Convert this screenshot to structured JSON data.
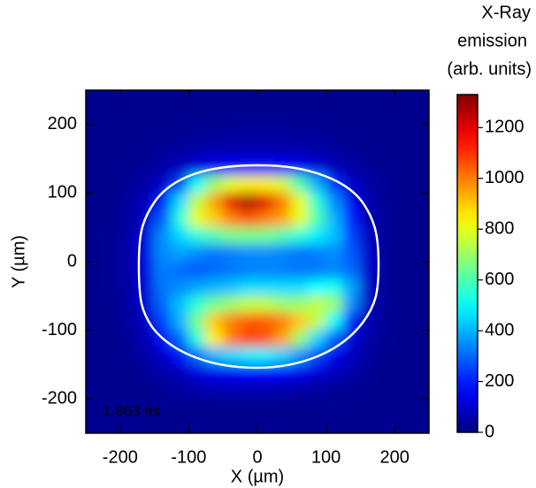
{
  "chart_data": {
    "type": "heatmap",
    "xlabel": "X (µm)",
    "ylabel": "Y (µm)",
    "annotation": "1.863 ns",
    "annotation_color": "#c030c0",
    "colormap": "jet",
    "xlim": [
      -250,
      250
    ],
    "ylim": [
      -250,
      250
    ],
    "xticks": [
      -200,
      -100,
      0,
      100,
      200
    ],
    "yticks": [
      -200,
      -100,
      0,
      100,
      200
    ],
    "x": [
      -237.5,
      -212.5,
      -187.5,
      -162.5,
      -137.5,
      -112.5,
      -87.5,
      -62.5,
      -37.5,
      -12.5,
      12.5,
      37.5,
      62.5,
      87.5,
      112.5,
      137.5,
      162.5,
      187.5,
      212.5,
      237.5
    ],
    "y": [
      237.5,
      212.5,
      187.5,
      162.5,
      137.5,
      112.5,
      87.5,
      62.5,
      37.5,
      12.5,
      -12.5,
      -37.5,
      -62.5,
      -87.5,
      -112.5,
      -137.5,
      -162.5,
      -187.5,
      -212.5,
      -237.5
    ],
    "values": [
      [
        20,
        20,
        20,
        20,
        20,
        20,
        20,
        20,
        20,
        20,
        20,
        20,
        20,
        20,
        20,
        20,
        20,
        20,
        20,
        20
      ],
      [
        20,
        20,
        20,
        20,
        20,
        20,
        20,
        20,
        20,
        20,
        20,
        20,
        20,
        20,
        20,
        20,
        20,
        20,
        20,
        20
      ],
      [
        20,
        20,
        20,
        20,
        20,
        25,
        30,
        35,
        40,
        40,
        40,
        40,
        35,
        30,
        25,
        20,
        20,
        20,
        20,
        20
      ],
      [
        20,
        20,
        20,
        20,
        30,
        40,
        50,
        60,
        60,
        60,
        60,
        60,
        60,
        50,
        40,
        30,
        20,
        20,
        20,
        20
      ],
      [
        20,
        20,
        20,
        30,
        50,
        80,
        120,
        150,
        170,
        180,
        180,
        170,
        150,
        120,
        80,
        50,
        30,
        20,
        20,
        20
      ],
      [
        20,
        20,
        30,
        50,
        100,
        250,
        500,
        700,
        800,
        850,
        850,
        780,
        600,
        400,
        220,
        100,
        50,
        30,
        20,
        20
      ],
      [
        20,
        20,
        40,
        80,
        200,
        450,
        750,
        950,
        1200,
        1280,
        1200,
        1000,
        800,
        550,
        350,
        150,
        60,
        30,
        20,
        20
      ],
      [
        20,
        20,
        40,
        100,
        280,
        550,
        800,
        900,
        1000,
        1050,
        1000,
        950,
        800,
        600,
        400,
        200,
        70,
        30,
        20,
        20
      ],
      [
        20,
        25,
        50,
        120,
        350,
        450,
        550,
        600,
        650,
        650,
        650,
        600,
        550,
        480,
        420,
        250,
        80,
        30,
        20,
        20
      ],
      [
        20,
        25,
        50,
        130,
        350,
        380,
        350,
        320,
        330,
        350,
        350,
        340,
        320,
        330,
        350,
        280,
        90,
        30,
        20,
        20
      ],
      [
        20,
        25,
        50,
        130,
        330,
        300,
        280,
        300,
        320,
        330,
        340,
        330,
        320,
        320,
        340,
        300,
        100,
        30,
        20,
        20
      ],
      [
        20,
        25,
        50,
        120,
        320,
        350,
        380,
        400,
        420,
        450,
        450,
        450,
        450,
        500,
        520,
        380,
        90,
        30,
        20,
        20
      ],
      [
        20,
        20,
        45,
        110,
        300,
        420,
        550,
        650,
        700,
        750,
        750,
        700,
        700,
        750,
        700,
        350,
        80,
        30,
        20,
        20
      ],
      [
        20,
        20,
        40,
        90,
        250,
        400,
        650,
        900,
        1000,
        1050,
        1050,
        1000,
        900,
        750,
        500,
        200,
        60,
        30,
        20,
        20
      ],
      [
        20,
        20,
        30,
        70,
        180,
        300,
        550,
        850,
        1000,
        1080,
        1050,
        950,
        700,
        450,
        280,
        120,
        50,
        25,
        20,
        20
      ],
      [
        20,
        20,
        25,
        50,
        100,
        180,
        300,
        400,
        450,
        480,
        480,
        440,
        360,
        250,
        150,
        80,
        40,
        20,
        20,
        20
      ],
      [
        20,
        20,
        20,
        30,
        50,
        80,
        120,
        150,
        160,
        170,
        170,
        160,
        140,
        110,
        80,
        50,
        30,
        20,
        20,
        20
      ],
      [
        20,
        20,
        20,
        20,
        30,
        40,
        50,
        60,
        60,
        60,
        60,
        60,
        50,
        40,
        30,
        25,
        20,
        20,
        20,
        20
      ],
      [
        20,
        20,
        20,
        20,
        20,
        20,
        20,
        20,
        20,
        20,
        20,
        20,
        20,
        20,
        20,
        20,
        20,
        20,
        20,
        20
      ],
      [
        20,
        20,
        20,
        20,
        20,
        20,
        20,
        20,
        20,
        20,
        20,
        20,
        20,
        20,
        20,
        20,
        20,
        20,
        20,
        20
      ]
    ],
    "colorbar": {
      "title": [
        "X-Ray",
        "emission",
        "(arb. units)"
      ],
      "lim": [
        0,
        1330
      ],
      "ticks": [
        0,
        200,
        400,
        600,
        800,
        1000,
        1200
      ]
    }
  }
}
